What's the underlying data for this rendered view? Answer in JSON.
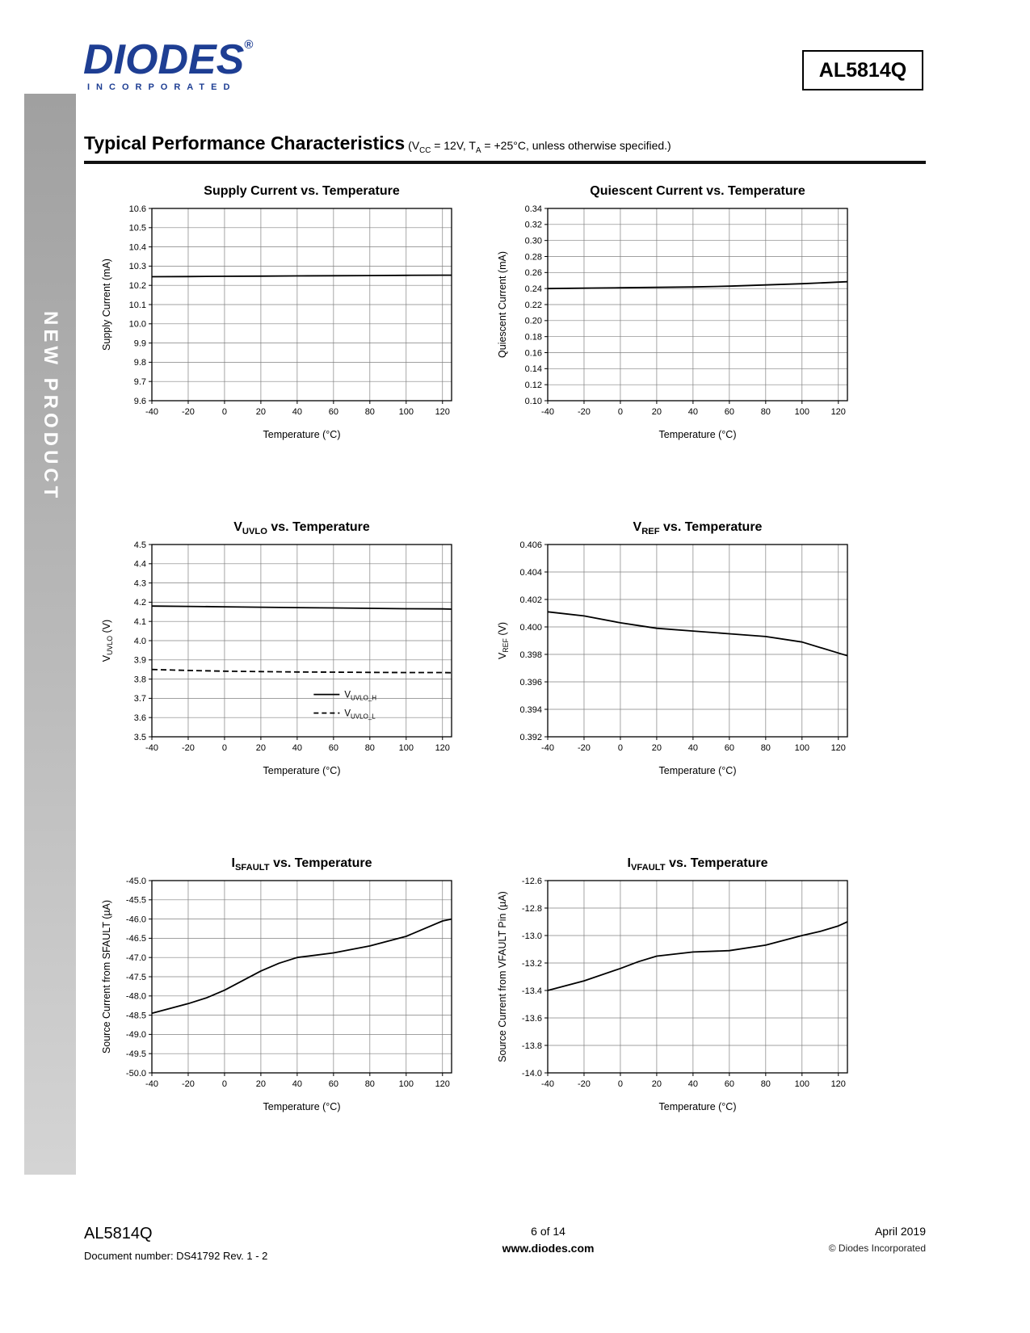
{
  "page": {
    "part_number": "AL5814Q",
    "logo": {
      "name": "DIODES",
      "reg": "®",
      "sub": "INCORPORATED"
    },
    "sidebar_text": "NEW PRODUCT",
    "section_title": "Typical Performance Characteristics",
    "section_subtitle": [
      {
        "t": "(V"
      },
      {
        "t": "CC",
        "sub": true
      },
      {
        "t": " = 12V, T"
      },
      {
        "t": "A",
        "sub": true
      },
      {
        "t": " = +25°C, unless otherwise specified.)"
      }
    ],
    "footer": {
      "part": "AL5814Q",
      "doc": "Document number: DS41792 Rev. 1 - 2",
      "page_info": "6 of 14",
      "site": "www.diodes.com",
      "date": "April 2019",
      "copyright": "© Diodes Incorporated"
    }
  },
  "chart_data": [
    {
      "type": "line",
      "title": [
        {
          "t": "Supply Current vs. Temperature"
        }
      ],
      "xlabel": "Temperature (°C)",
      "ylabel": [
        {
          "t": "Supply Current (mA)"
        }
      ],
      "xlim": [
        -40,
        125
      ],
      "ylim": [
        9.6,
        10.6
      ],
      "xticks": [
        -40,
        -20,
        0,
        20,
        40,
        60,
        80,
        100,
        120
      ],
      "yticks": [
        9.6,
        9.7,
        9.8,
        9.9,
        10.0,
        10.1,
        10.2,
        10.3,
        10.4,
        10.5,
        10.6
      ],
      "xdec": 0,
      "ydec": 1,
      "grid": true,
      "series": [
        {
          "name": "supply-current",
          "style": "solid",
          "x": [
            -40,
            -20,
            0,
            20,
            40,
            60,
            80,
            100,
            120,
            125
          ],
          "y": [
            10.245,
            10.246,
            10.247,
            10.248,
            10.249,
            10.25,
            10.251,
            10.252,
            10.253,
            10.253
          ]
        }
      ]
    },
    {
      "type": "line",
      "title": [
        {
          "t": "Quiescent Current vs. Temperature"
        }
      ],
      "xlabel": "Temperature (°C)",
      "ylabel": [
        {
          "t": "Quiescent Current (mA)"
        }
      ],
      "xlim": [
        -40,
        125
      ],
      "ylim": [
        0.1,
        0.34
      ],
      "xticks": [
        -40,
        -20,
        0,
        20,
        40,
        60,
        80,
        100,
        120
      ],
      "yticks": [
        0.1,
        0.12,
        0.14,
        0.16,
        0.18,
        0.2,
        0.22,
        0.24,
        0.26,
        0.28,
        0.3,
        0.32,
        0.34
      ],
      "xdec": 0,
      "ydec": 2,
      "grid": true,
      "series": [
        {
          "name": "quiescent-current",
          "style": "solid",
          "x": [
            -40,
            -20,
            0,
            20,
            40,
            60,
            80,
            100,
            120,
            125
          ],
          "y": [
            0.24,
            0.2405,
            0.241,
            0.2415,
            0.242,
            0.243,
            0.2445,
            0.246,
            0.248,
            0.2485
          ]
        }
      ]
    },
    {
      "type": "line",
      "title": [
        {
          "t": "V"
        },
        {
          "t": "UVLO",
          "sub": true
        },
        {
          "t": " vs. Temperature"
        }
      ],
      "xlabel": "Temperature (°C)",
      "ylabel": [
        {
          "t": "V"
        },
        {
          "t": "UVLO",
          "sub": true
        },
        {
          "t": " (V)"
        }
      ],
      "xlim": [
        -40,
        125
      ],
      "ylim": [
        3.5,
        4.5
      ],
      "xticks": [
        -40,
        -20,
        0,
        20,
        40,
        60,
        80,
        100,
        120
      ],
      "yticks": [
        3.5,
        3.6,
        3.7,
        3.8,
        3.9,
        4.0,
        4.1,
        4.2,
        4.3,
        4.4,
        4.5
      ],
      "xdec": 0,
      "ydec": 1,
      "grid": true,
      "series": [
        {
          "name": "V_UVLO_H",
          "style": "solid",
          "x": [
            -40,
            -20,
            0,
            20,
            40,
            60,
            80,
            100,
            120,
            125
          ],
          "y": [
            4.18,
            4.178,
            4.176,
            4.174,
            4.172,
            4.17,
            4.168,
            4.166,
            4.165,
            4.164
          ]
        },
        {
          "name": "V_UVLO_L",
          "style": "dashed",
          "x": [
            -40,
            -20,
            0,
            20,
            40,
            60,
            80,
            100,
            120,
            125
          ],
          "y": [
            3.85,
            3.845,
            3.841,
            3.839,
            3.837,
            3.836,
            3.835,
            3.834,
            3.834,
            3.833
          ]
        }
      ],
      "legend": {
        "x": 0.54,
        "y": 0.78,
        "entries": [
          {
            "label": [
              {
                "t": "V"
              },
              {
                "t": "UVLO_H",
                "sub": true
              }
            ],
            "style": "solid"
          },
          {
            "label": [
              {
                "t": "V"
              },
              {
                "t": "UVLO_L",
                "sub": true
              }
            ],
            "style": "dashed"
          }
        ]
      }
    },
    {
      "type": "line",
      "title": [
        {
          "t": "V"
        },
        {
          "t": "REF",
          "sub": true
        },
        {
          "t": " vs. Temperature"
        }
      ],
      "xlabel": "Temperature (°C)",
      "ylabel": [
        {
          "t": "V"
        },
        {
          "t": "REF",
          "sub": true
        },
        {
          "t": " (V)"
        }
      ],
      "xlim": [
        -40,
        125
      ],
      "ylim": [
        0.392,
        0.406
      ],
      "xticks": [
        -40,
        -20,
        0,
        20,
        40,
        60,
        80,
        100,
        120
      ],
      "yticks": [
        0.392,
        0.394,
        0.396,
        0.398,
        0.4,
        0.402,
        0.404,
        0.406
      ],
      "xdec": 0,
      "ydec": 3,
      "grid": true,
      "series": [
        {
          "name": "V_REF",
          "style": "solid",
          "x": [
            -40,
            -20,
            0,
            10,
            20,
            40,
            60,
            80,
            100,
            120,
            125
          ],
          "y": [
            0.4011,
            0.4008,
            0.4003,
            0.4001,
            0.3999,
            0.3997,
            0.3995,
            0.3993,
            0.3989,
            0.3981,
            0.3979
          ]
        }
      ]
    },
    {
      "type": "line",
      "title": [
        {
          "t": "I"
        },
        {
          "t": "SFAULT",
          "sub": true
        },
        {
          "t": " vs. Temperature"
        }
      ],
      "xlabel": "Temperature (°C)",
      "ylabel": [
        {
          "t": "Source Current from SFAULT (µA)"
        }
      ],
      "xlim": [
        -40,
        125
      ],
      "ylim": [
        -50.0,
        -45.0
      ],
      "xticks": [
        -40,
        -20,
        0,
        20,
        40,
        60,
        80,
        100,
        120
      ],
      "yticks": [
        -50.0,
        -49.5,
        -49.0,
        -48.5,
        -48.0,
        -47.5,
        -47.0,
        -46.5,
        -46.0,
        -45.5,
        -45.0
      ],
      "xdec": 0,
      "ydec": 1,
      "grid": true,
      "series": [
        {
          "name": "I_SFAULT",
          "style": "solid",
          "x": [
            -40,
            -20,
            -10,
            0,
            10,
            20,
            30,
            40,
            60,
            80,
            100,
            120,
            125
          ],
          "y": [
            -48.45,
            -48.2,
            -48.05,
            -47.85,
            -47.6,
            -47.35,
            -47.15,
            -47.0,
            -46.88,
            -46.7,
            -46.45,
            -46.05,
            -46.0
          ]
        }
      ]
    },
    {
      "type": "line",
      "title": [
        {
          "t": "I"
        },
        {
          "t": "VFAULT",
          "sub": true
        },
        {
          "t": " vs. Temperature"
        }
      ],
      "xlabel": "Temperature (°C)",
      "ylabel": [
        {
          "t": "Source Current from VFAULT Pin (µA)"
        }
      ],
      "xlim": [
        -40,
        125
      ],
      "ylim": [
        -14.0,
        -12.6
      ],
      "xticks": [
        -40,
        -20,
        0,
        20,
        40,
        60,
        80,
        100,
        120
      ],
      "yticks": [
        -14.0,
        -13.8,
        -13.6,
        -13.4,
        -13.2,
        -13.0,
        -12.8,
        -12.6
      ],
      "xdec": 0,
      "ydec": 1,
      "grid": true,
      "series": [
        {
          "name": "I_VFAULT",
          "style": "solid",
          "x": [
            -40,
            -20,
            0,
            10,
            20,
            40,
            60,
            80,
            100,
            110,
            120,
            125
          ],
          "y": [
            -13.4,
            -13.33,
            -13.24,
            -13.19,
            -13.15,
            -13.12,
            -13.11,
            -13.07,
            -13.0,
            -12.97,
            -12.93,
            -12.9
          ]
        }
      ]
    }
  ]
}
